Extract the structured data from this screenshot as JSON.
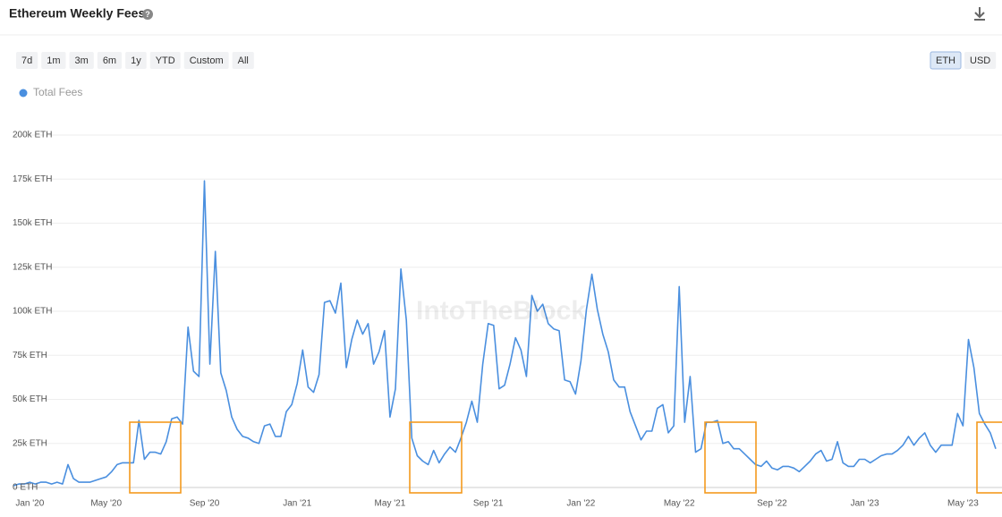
{
  "header": {
    "title": "Ethereum Weekly Fees",
    "ranges": [
      "7d",
      "1m",
      "3m",
      "6m",
      "1y",
      "YTD",
      "Custom",
      "All"
    ],
    "units": [
      "ETH",
      "USD"
    ]
  },
  "watermark": "IntoTheBlock",
  "chart_data": {
    "type": "line",
    "categories": [
      null,
      null,
      null,
      "Jan '20",
      null,
      null,
      null,
      null,
      null,
      null,
      null,
      null,
      null,
      null,
      null,
      null,
      null,
      "May '20",
      null,
      null,
      null,
      null,
      null,
      null,
      null,
      null,
      null,
      null,
      null,
      null,
      null,
      null,
      null,
      null,
      null,
      "Sep '20",
      null,
      null,
      null,
      null,
      null,
      null,
      null,
      null,
      null,
      null,
      null,
      null,
      null,
      null,
      null,
      null,
      "Jan '21",
      null,
      null,
      null,
      null,
      null,
      null,
      null,
      null,
      null,
      null,
      null,
      null,
      null,
      null,
      null,
      null,
      "May '21",
      null,
      null,
      null,
      null,
      null,
      null,
      null,
      null,
      null,
      null,
      null,
      null,
      null,
      null,
      null,
      null,
      null,
      "Sep '21",
      null,
      null,
      null,
      null,
      null,
      null,
      null,
      null,
      null,
      null,
      null,
      null,
      null,
      null,
      null,
      null,
      "Jan '22",
      null,
      null,
      null,
      null,
      null,
      null,
      null,
      null,
      null,
      null,
      null,
      null,
      null,
      null,
      null,
      null,
      null,
      "May '22",
      null,
      null,
      null,
      null,
      null,
      null,
      null,
      null,
      null,
      null,
      null,
      null,
      null,
      null,
      null,
      null,
      "Sep '22",
      null,
      null,
      null,
      null,
      null,
      null,
      null,
      null,
      null,
      null,
      null,
      null,
      null,
      null,
      null,
      null,
      "Jan '23",
      null,
      null,
      null,
      null,
      null,
      null,
      null,
      null,
      null,
      null,
      null,
      null,
      null,
      null,
      null,
      null,
      null,
      "May '23",
      null,
      null,
      null,
      null,
      null,
      null
    ],
    "series": [
      {
        "name": "Total Fees",
        "color": "#4a8fdf",
        "values": [
          1000,
          2000,
          2000,
          3000,
          2000,
          3000,
          3000,
          2000,
          3000,
          2000,
          13000,
          5000,
          3000,
          3000,
          3000,
          4000,
          5000,
          6000,
          9000,
          13000,
          14000,
          14000,
          14000,
          38000,
          16000,
          20000,
          20000,
          19000,
          26000,
          39000,
          40000,
          36000,
          91000,
          66000,
          63000,
          174000,
          70000,
          134000,
          65000,
          55000,
          40000,
          33000,
          29000,
          28000,
          26000,
          25000,
          35000,
          36000,
          29000,
          29000,
          43000,
          47000,
          59000,
          78000,
          57000,
          54000,
          64000,
          105000,
          106000,
          99000,
          116000,
          68000,
          84000,
          95000,
          87000,
          93000,
          70000,
          77000,
          89000,
          40000,
          56000,
          124000,
          95000,
          28000,
          18000,
          15000,
          13000,
          21000,
          14000,
          19000,
          23000,
          20000,
          28000,
          37000,
          49000,
          37000,
          70000,
          93000,
          92000,
          56000,
          58000,
          70000,
          85000,
          78000,
          63000,
          109000,
          100000,
          104000,
          93000,
          90000,
          89000,
          61000,
          60000,
          53000,
          72000,
          101000,
          121000,
          101000,
          87000,
          77000,
          61000,
          57000,
          57000,
          43000,
          35000,
          27000,
          32000,
          32000,
          45000,
          47000,
          31000,
          35000,
          114000,
          37000,
          63000,
          20000,
          22000,
          37000,
          37000,
          38000,
          25000,
          26000,
          22000,
          22000,
          19000,
          16000,
          13000,
          12000,
          15000,
          11000,
          10000,
          12000,
          12000,
          11000,
          9000,
          12000,
          15000,
          19000,
          21000,
          15000,
          16000,
          26000,
          14000,
          12000,
          12000,
          16000,
          16000,
          14000,
          16000,
          18000,
          19000,
          19000,
          21000,
          24000,
          29000,
          24000,
          28000,
          31000,
          24000,
          20000,
          24000,
          24000,
          24000,
          42000,
          35000,
          84000,
          68000,
          42000,
          36000,
          31000,
          22000
        ]
      }
    ],
    "ylim": [
      0,
      200000
    ],
    "yticks": [
      {
        "value": 0,
        "label": "0 ETH"
      },
      {
        "value": 25000,
        "label": "25k ETH"
      },
      {
        "value": 50000,
        "label": "50k ETH"
      },
      {
        "value": 75000,
        "label": "75k ETH"
      },
      {
        "value": 100000,
        "label": "100k ETH"
      },
      {
        "value": 125000,
        "label": "125k ETH"
      },
      {
        "value": 150000,
        "label": "150k ETH"
      },
      {
        "value": 175000,
        "label": "175k ETH"
      },
      {
        "value": 200000,
        "label": "200k ETH"
      }
    ],
    "grid": true
  }
}
